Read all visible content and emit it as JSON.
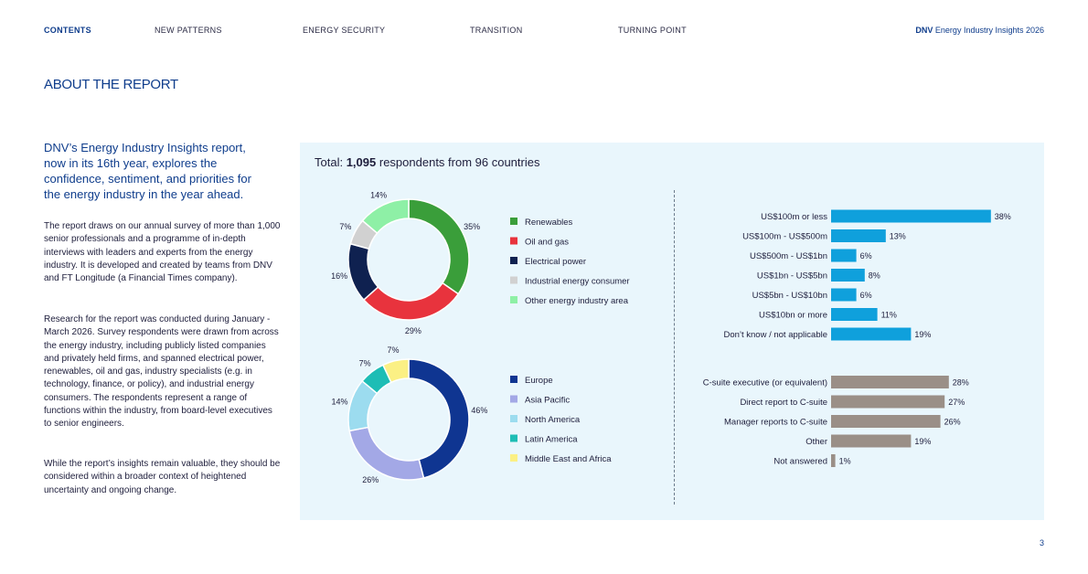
{
  "nav": {
    "items": [
      "CONTENTS",
      "NEW PATTERNS",
      "ENERGY SECURITY",
      "TRANSITION",
      "TURNING POINT"
    ],
    "brand_bold": "DNV",
    "brand_rest": "Energy Industry Insights 2026"
  },
  "page": {
    "title": "ABOUT THE REPORT",
    "lead": "DNV’s Energy Industry Insights report, now in its 16th year, explores the confidence, sentiment, and priorities for the energy industry in the year ahead.",
    "para1": "The report draws on our annual survey of more than 1,000 senior professionals and a programme of in-depth interviews with leaders and experts from the energy industry. It is developed and created by teams from DNV and FT Longitude (a Financial Times company).",
    "para2": "Research for the report was conducted during January - March 2026. Survey respondents were drawn from across the energy industry, including publicly listed companies and privately held firms, and spanned electrical power, renewables, oil and gas, industry specialists (e.g. in technology, finance, or policy), and industrial energy consumers. The respondents represent a range of functions within the industry, from board-level executives to senior engineers.",
    "para3": "While the report’s insights remain valuable, they should be considered within a broader context of heightened uncertainty and ongoing change.",
    "page_number": "3"
  },
  "panel": {
    "total_prefix": "Total:",
    "total_bold": "1,095",
    "total_suffix": "respondents from 96 countries"
  },
  "chart_data": [
    {
      "type": "pie",
      "donut": true,
      "categories": [
        "Renewables",
        "Oil and gas",
        "Electrical power",
        "Industrial energy consumer",
        "Other energy industry area"
      ],
      "values": [
        35,
        29,
        16,
        7,
        14
      ],
      "colors": [
        "#3a9e3a",
        "#e8333d",
        "#0f2150",
        "#d1d1d1",
        "#8ef0a6"
      ],
      "unit": "%",
      "legend": "right"
    },
    {
      "type": "pie",
      "donut": true,
      "categories": [
        "Europe",
        "Asia Pacific",
        "North America",
        "Latin America",
        "Middle East and Africa"
      ],
      "values": [
        46,
        26,
        14,
        7,
        7
      ],
      "colors": [
        "#0f3591",
        "#a3a8e6",
        "#9cdcef",
        "#1ebdb5",
        "#fbf084"
      ],
      "unit": "%",
      "legend": "right"
    },
    {
      "type": "bar",
      "orientation": "horizontal",
      "categories": [
        "US$100m or less",
        "US$100m - US$500m",
        "US$500m - US$1bn",
        "US$1bn - US$5bn",
        "US$5bn - US$10bn",
        "US$10bn or more",
        "Don’t know / not applicable"
      ],
      "values": [
        38,
        13,
        6,
        8,
        6,
        11,
        19
      ],
      "color": "#0fa0dc",
      "unit": "%"
    },
    {
      "type": "bar",
      "orientation": "horizontal",
      "categories": [
        "C-suite executive (or equivalent)",
        "Direct report to C-suite",
        "Manager reports to C-suite",
        "Other",
        "Not answered"
      ],
      "values": [
        28,
        27,
        26,
        19,
        1
      ],
      "color": "#9a8f87",
      "unit": "%"
    }
  ]
}
